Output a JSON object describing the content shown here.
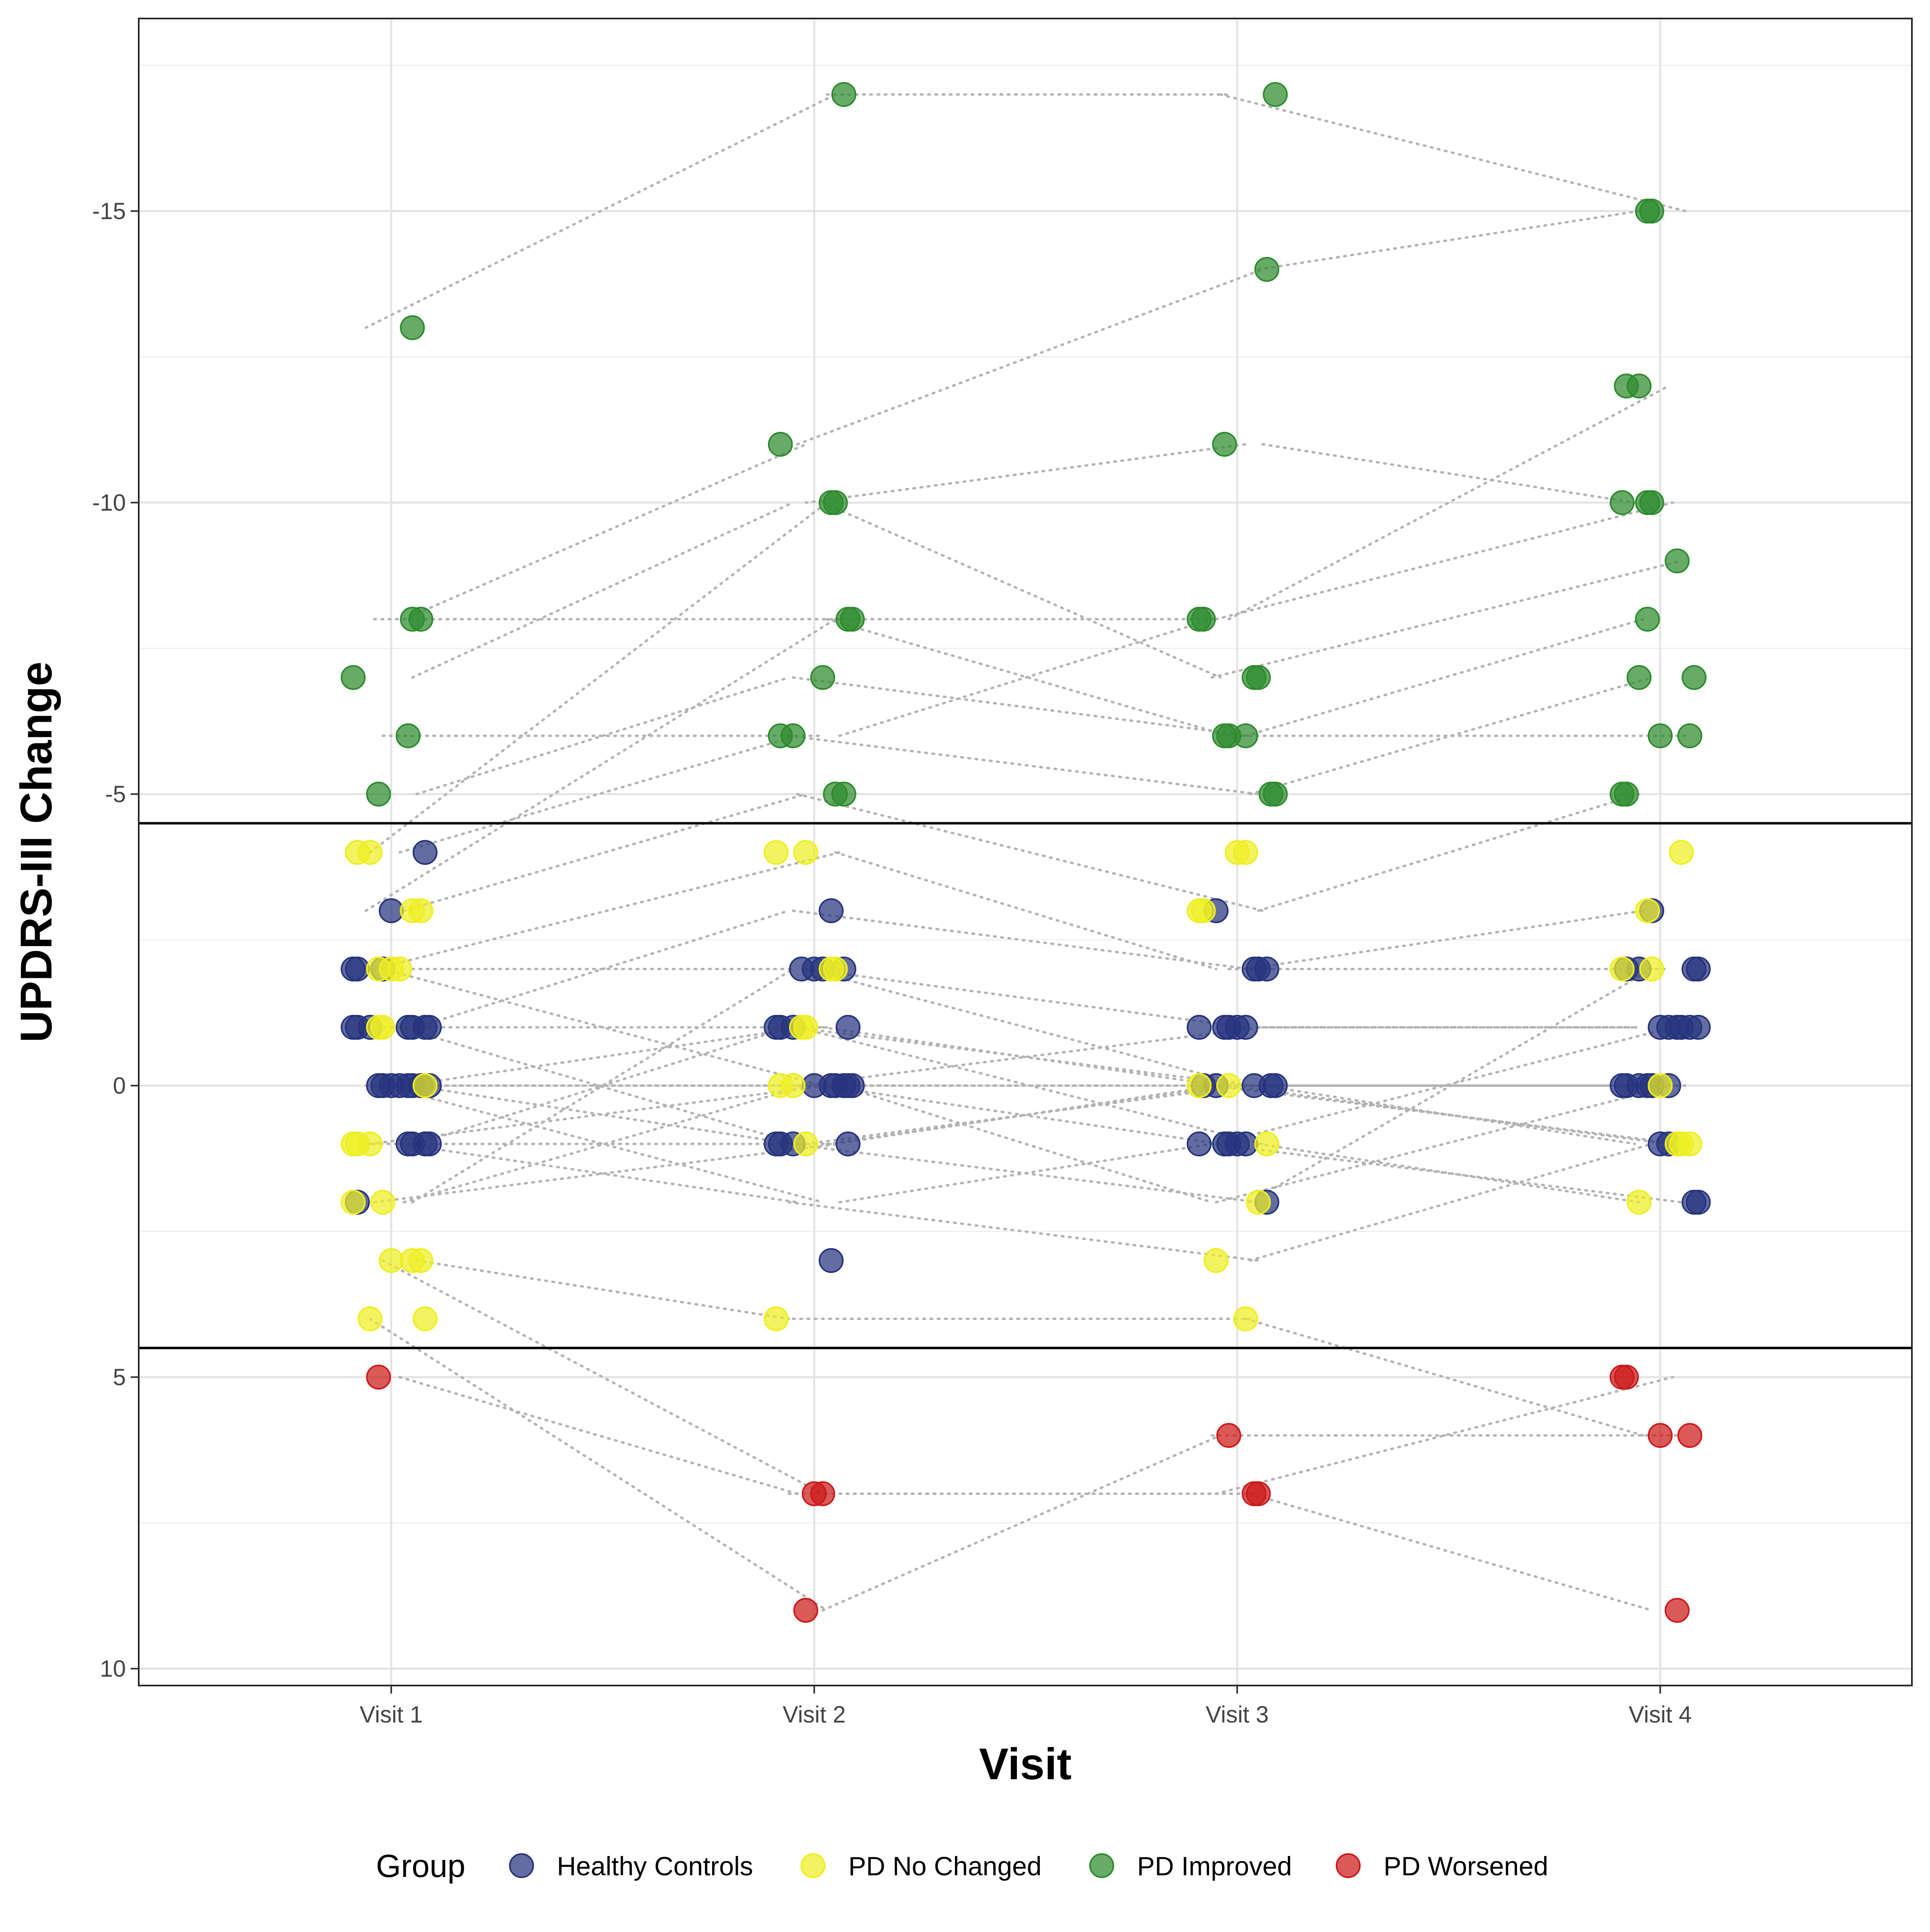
{
  "chart_data": {
    "type": "scatter",
    "title": "",
    "xlabel": "Visit",
    "ylabel": "UPDRS-III Change",
    "categories": [
      "Visit 1",
      "Visit 2",
      "Visit 3",
      "Visit 4"
    ],
    "y_reversed": true,
    "ylim": [
      -18.3,
      10.3
    ],
    "y_ticks": [
      -15,
      -10,
      -5,
      0,
      5,
      10
    ],
    "y_tick_labels": [
      "-15",
      "-10",
      "-5",
      "0",
      "5",
      "10"
    ],
    "thresholds": [
      -4.5,
      4.5
    ],
    "grid": true,
    "legend": {
      "title": "Group",
      "placement": "bottom"
    },
    "colors": {
      "Healthy Controls": "#27347e",
      "PD No Changed": "#eeee22",
      "PD Improved": "#2e8b2e",
      "PD Worsened": "#cc1a1a"
    },
    "series": [
      {
        "name": "Healthy Controls",
        "points": [
          {
            "x": "Visit 1",
            "y": -4
          },
          {
            "x": "Visit 1",
            "y": -3
          },
          {
            "x": "Visit 1",
            "y": -2
          },
          {
            "x": "Visit 1",
            "y": -2
          },
          {
            "x": "Visit 1",
            "y": -2
          },
          {
            "x": "Visit 1",
            "y": -1
          },
          {
            "x": "Visit 1",
            "y": -1
          },
          {
            "x": "Visit 1",
            "y": -1
          },
          {
            "x": "Visit 1",
            "y": -1
          },
          {
            "x": "Visit 1",
            "y": -1
          },
          {
            "x": "Visit 1",
            "y": -1
          },
          {
            "x": "Visit 1",
            "y": -1
          },
          {
            "x": "Visit 1",
            "y": 0
          },
          {
            "x": "Visit 1",
            "y": 0
          },
          {
            "x": "Visit 1",
            "y": 0
          },
          {
            "x": "Visit 1",
            "y": 0
          },
          {
            "x": "Visit 1",
            "y": 0
          },
          {
            "x": "Visit 1",
            "y": 0
          },
          {
            "x": "Visit 1",
            "y": 0
          },
          {
            "x": "Visit 1",
            "y": 0
          },
          {
            "x": "Visit 1",
            "y": 1
          },
          {
            "x": "Visit 1",
            "y": 1
          },
          {
            "x": "Visit 1",
            "y": 1
          },
          {
            "x": "Visit 1",
            "y": 1
          },
          {
            "x": "Visit 1",
            "y": 2
          },
          {
            "x": "Visit 2",
            "y": -3
          },
          {
            "x": "Visit 2",
            "y": -2
          },
          {
            "x": "Visit 2",
            "y": -2
          },
          {
            "x": "Visit 2",
            "y": -2
          },
          {
            "x": "Visit 2",
            "y": -2
          },
          {
            "x": "Visit 2",
            "y": -1
          },
          {
            "x": "Visit 2",
            "y": -1
          },
          {
            "x": "Visit 2",
            "y": -1
          },
          {
            "x": "Visit 2",
            "y": -1
          },
          {
            "x": "Visit 2",
            "y": 0
          },
          {
            "x": "Visit 2",
            "y": 0
          },
          {
            "x": "Visit 2",
            "y": 0
          },
          {
            "x": "Visit 2",
            "y": 0
          },
          {
            "x": "Visit 2",
            "y": 0
          },
          {
            "x": "Visit 2",
            "y": 0
          },
          {
            "x": "Visit 2",
            "y": 1
          },
          {
            "x": "Visit 2",
            "y": 1
          },
          {
            "x": "Visit 2",
            "y": 1
          },
          {
            "x": "Visit 2",
            "y": 1
          },
          {
            "x": "Visit 2",
            "y": 3
          },
          {
            "x": "Visit 3",
            "y": -3
          },
          {
            "x": "Visit 3",
            "y": -2
          },
          {
            "x": "Visit 3",
            "y": -2
          },
          {
            "x": "Visit 3",
            "y": -2
          },
          {
            "x": "Visit 3",
            "y": -1
          },
          {
            "x": "Visit 3",
            "y": -1
          },
          {
            "x": "Visit 3",
            "y": -1
          },
          {
            "x": "Visit 3",
            "y": -1
          },
          {
            "x": "Visit 3",
            "y": -1
          },
          {
            "x": "Visit 3",
            "y": 0
          },
          {
            "x": "Visit 3",
            "y": 0
          },
          {
            "x": "Visit 3",
            "y": 0
          },
          {
            "x": "Visit 3",
            "y": 0
          },
          {
            "x": "Visit 3",
            "y": 0
          },
          {
            "x": "Visit 3",
            "y": 1
          },
          {
            "x": "Visit 3",
            "y": 1
          },
          {
            "x": "Visit 3",
            "y": 1
          },
          {
            "x": "Visit 3",
            "y": 1
          },
          {
            "x": "Visit 3",
            "y": 1
          },
          {
            "x": "Visit 3",
            "y": 2
          },
          {
            "x": "Visit 4",
            "y": -3
          },
          {
            "x": "Visit 4",
            "y": -2
          },
          {
            "x": "Visit 4",
            "y": -2
          },
          {
            "x": "Visit 4",
            "y": -2
          },
          {
            "x": "Visit 4",
            "y": -2
          },
          {
            "x": "Visit 4",
            "y": -1
          },
          {
            "x": "Visit 4",
            "y": -1
          },
          {
            "x": "Visit 4",
            "y": -1
          },
          {
            "x": "Visit 4",
            "y": -1
          },
          {
            "x": "Visit 4",
            "y": -1
          },
          {
            "x": "Visit 4",
            "y": -1
          },
          {
            "x": "Visit 4",
            "y": 0
          },
          {
            "x": "Visit 4",
            "y": 0
          },
          {
            "x": "Visit 4",
            "y": 0
          },
          {
            "x": "Visit 4",
            "y": 0
          },
          {
            "x": "Visit 4",
            "y": 0
          },
          {
            "x": "Visit 4",
            "y": 0
          },
          {
            "x": "Visit 4",
            "y": 1
          },
          {
            "x": "Visit 4",
            "y": 1
          },
          {
            "x": "Visit 4",
            "y": 2
          },
          {
            "x": "Visit 4",
            "y": 2
          }
        ]
      },
      {
        "name": "PD No Changed",
        "points": [
          {
            "x": "Visit 1",
            "y": -4
          },
          {
            "x": "Visit 1",
            "y": -4
          },
          {
            "x": "Visit 1",
            "y": -3
          },
          {
            "x": "Visit 1",
            "y": -3
          },
          {
            "x": "Visit 1",
            "y": -2
          },
          {
            "x": "Visit 1",
            "y": -2
          },
          {
            "x": "Visit 1",
            "y": -2
          },
          {
            "x": "Visit 1",
            "y": -1
          },
          {
            "x": "Visit 1",
            "y": -1
          },
          {
            "x": "Visit 1",
            "y": 0
          },
          {
            "x": "Visit 1",
            "y": 1
          },
          {
            "x": "Visit 1",
            "y": 1
          },
          {
            "x": "Visit 1",
            "y": 1
          },
          {
            "x": "Visit 1",
            "y": 2
          },
          {
            "x": "Visit 1",
            "y": 2
          },
          {
            "x": "Visit 1",
            "y": 3
          },
          {
            "x": "Visit 1",
            "y": 3
          },
          {
            "x": "Visit 1",
            "y": 3
          },
          {
            "x": "Visit 1",
            "y": 4
          },
          {
            "x": "Visit 1",
            "y": 4
          },
          {
            "x": "Visit 2",
            "y": -4
          },
          {
            "x": "Visit 2",
            "y": -4
          },
          {
            "x": "Visit 2",
            "y": -2
          },
          {
            "x": "Visit 2",
            "y": -2
          },
          {
            "x": "Visit 2",
            "y": -1
          },
          {
            "x": "Visit 2",
            "y": -1
          },
          {
            "x": "Visit 2",
            "y": 0
          },
          {
            "x": "Visit 2",
            "y": 0
          },
          {
            "x": "Visit 2",
            "y": 1
          },
          {
            "x": "Visit 2",
            "y": 4
          },
          {
            "x": "Visit 3",
            "y": -4
          },
          {
            "x": "Visit 3",
            "y": -4
          },
          {
            "x": "Visit 3",
            "y": -3
          },
          {
            "x": "Visit 3",
            "y": -3
          },
          {
            "x": "Visit 3",
            "y": 0
          },
          {
            "x": "Visit 3",
            "y": 0
          },
          {
            "x": "Visit 3",
            "y": 1
          },
          {
            "x": "Visit 3",
            "y": 2
          },
          {
            "x": "Visit 3",
            "y": 3
          },
          {
            "x": "Visit 3",
            "y": 4
          },
          {
            "x": "Visit 4",
            "y": -4
          },
          {
            "x": "Visit 4",
            "y": -3
          },
          {
            "x": "Visit 4",
            "y": -2
          },
          {
            "x": "Visit 4",
            "y": -2
          },
          {
            "x": "Visit 4",
            "y": 0
          },
          {
            "x": "Visit 4",
            "y": 1
          },
          {
            "x": "Visit 4",
            "y": 1
          },
          {
            "x": "Visit 4",
            "y": 1
          },
          {
            "x": "Visit 4",
            "y": 2
          }
        ]
      },
      {
        "name": "PD Improved",
        "points": [
          {
            "x": "Visit 1",
            "y": -13
          },
          {
            "x": "Visit 1",
            "y": -8
          },
          {
            "x": "Visit 1",
            "y": -8
          },
          {
            "x": "Visit 1",
            "y": -7
          },
          {
            "x": "Visit 1",
            "y": -6
          },
          {
            "x": "Visit 1",
            "y": -5
          },
          {
            "x": "Visit 2",
            "y": -17
          },
          {
            "x": "Visit 2",
            "y": -11
          },
          {
            "x": "Visit 2",
            "y": -10
          },
          {
            "x": "Visit 2",
            "y": -10
          },
          {
            "x": "Visit 2",
            "y": -8
          },
          {
            "x": "Visit 2",
            "y": -8
          },
          {
            "x": "Visit 2",
            "y": -7
          },
          {
            "x": "Visit 2",
            "y": -6
          },
          {
            "x": "Visit 2",
            "y": -6
          },
          {
            "x": "Visit 2",
            "y": -5
          },
          {
            "x": "Visit 2",
            "y": -5
          },
          {
            "x": "Visit 3",
            "y": -17
          },
          {
            "x": "Visit 3",
            "y": -14
          },
          {
            "x": "Visit 3",
            "y": -11
          },
          {
            "x": "Visit 3",
            "y": -8
          },
          {
            "x": "Visit 3",
            "y": -8
          },
          {
            "x": "Visit 3",
            "y": -7
          },
          {
            "x": "Visit 3",
            "y": -7
          },
          {
            "x": "Visit 3",
            "y": -6
          },
          {
            "x": "Visit 3",
            "y": -6
          },
          {
            "x": "Visit 3",
            "y": -6
          },
          {
            "x": "Visit 3",
            "y": -5
          },
          {
            "x": "Visit 3",
            "y": -5
          },
          {
            "x": "Visit 4",
            "y": -15
          },
          {
            "x": "Visit 4",
            "y": -15
          },
          {
            "x": "Visit 4",
            "y": -12
          },
          {
            "x": "Visit 4",
            "y": -12
          },
          {
            "x": "Visit 4",
            "y": -10
          },
          {
            "x": "Visit 4",
            "y": -10
          },
          {
            "x": "Visit 4",
            "y": -10
          },
          {
            "x": "Visit 4",
            "y": -9
          },
          {
            "x": "Visit 4",
            "y": -8
          },
          {
            "x": "Visit 4",
            "y": -7
          },
          {
            "x": "Visit 4",
            "y": -7
          },
          {
            "x": "Visit 4",
            "y": -6
          },
          {
            "x": "Visit 4",
            "y": -6
          },
          {
            "x": "Visit 4",
            "y": -5
          },
          {
            "x": "Visit 4",
            "y": -5
          }
        ]
      },
      {
        "name": "PD Worsened",
        "points": [
          {
            "x": "Visit 1",
            "y": 5
          },
          {
            "x": "Visit 2",
            "y": 7
          },
          {
            "x": "Visit 2",
            "y": 7
          },
          {
            "x": "Visit 2",
            "y": 9
          },
          {
            "x": "Visit 3",
            "y": 6
          },
          {
            "x": "Visit 3",
            "y": 7
          },
          {
            "x": "Visit 3",
            "y": 7
          },
          {
            "x": "Visit 4",
            "y": 5
          },
          {
            "x": "Visit 4",
            "y": 5
          },
          {
            "x": "Visit 4",
            "y": 6
          },
          {
            "x": "Visit 4",
            "y": 6
          },
          {
            "x": "Visit 4",
            "y": 9
          }
        ]
      }
    ],
    "connections": [
      [
        -13,
        -17,
        -17,
        -15
      ],
      [
        -8,
        -11,
        -14,
        -15
      ],
      [
        -8,
        -8,
        -8,
        -12
      ],
      [
        -7,
        -10,
        -11,
        -10
      ],
      [
        -6,
        -6,
        -8,
        -10
      ],
      [
        -5,
        -7,
        -6,
        -8
      ],
      [
        -4,
        -10,
        -7,
        -9
      ],
      [
        -4,
        -6,
        -5,
        -7
      ],
      [
        -3,
        -8,
        -6,
        -6
      ],
      [
        -3,
        -5,
        -3,
        -5
      ],
      [
        -2,
        -4,
        -2,
        -2
      ],
      [
        -2,
        -2,
        -1,
        -1
      ],
      [
        -2,
        0,
        2,
        0
      ],
      [
        -1,
        -3,
        -2,
        -3
      ],
      [
        -1,
        -1,
        0,
        1
      ],
      [
        -1,
        1,
        2,
        -2
      ],
      [
        0,
        0,
        0,
        0
      ],
      [
        0,
        -1,
        1,
        2
      ],
      [
        0,
        0,
        0,
        0
      ],
      [
        0,
        1,
        0,
        1
      ],
      [
        0,
        2,
        1,
        -1
      ],
      [
        1,
        -1,
        0,
        0
      ],
      [
        1,
        0,
        1,
        2
      ],
      [
        1,
        2,
        3,
        1
      ],
      [
        1,
        1,
        0,
        0
      ],
      [
        2,
        0,
        -1,
        -1
      ],
      [
        2,
        1,
        0,
        1
      ],
      [
        2,
        -2,
        0,
        0
      ],
      [
        3,
        7,
        7,
        5
      ],
      [
        3,
        4,
        4,
        6
      ],
      [
        4,
        9,
        6,
        6
      ],
      [
        5,
        7,
        7,
        9
      ]
    ]
  }
}
